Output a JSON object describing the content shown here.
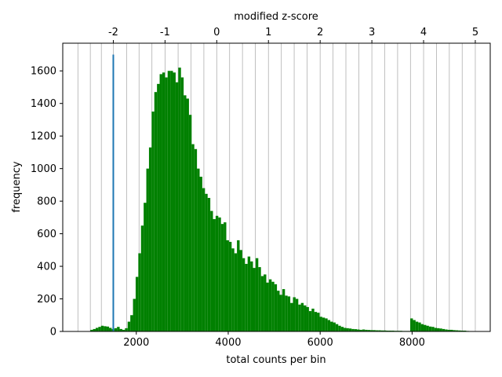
{
  "chart_data": {
    "type": "bar",
    "xlabel": "total counts per bin",
    "ylabel": "frequency",
    "top_xlabel": "modified z-score",
    "xlim": [
      400,
      9700
    ],
    "ylim": [
      0,
      1770
    ],
    "x_ticks": [
      2000,
      4000,
      6000,
      8000
    ],
    "x_tick_labels": [
      "2000",
      "4000",
      "6000",
      "8000"
    ],
    "y_ticks": [
      0,
      200,
      400,
      600,
      800,
      1000,
      1200,
      1400,
      1600
    ],
    "y_tick_labels": [
      "0",
      "200",
      "400",
      "600",
      "800",
      "1000",
      "1200",
      "1400",
      "1600"
    ],
    "top_ticks": [
      {
        "label": "-2",
        "x": 1500
      },
      {
        "label": "-1",
        "x": 2625
      },
      {
        "label": "0",
        "x": 3750
      },
      {
        "label": "1",
        "x": 4875
      },
      {
        "label": "2",
        "x": 6000
      },
      {
        "label": "3",
        "x": 7125
      },
      {
        "label": "4",
        "x": 8250
      },
      {
        "label": "5",
        "x": 9375
      }
    ],
    "grid_x": [
      730,
      1000,
      1240,
      1500,
      1790,
      2060,
      2340,
      2625,
      2910,
      3190,
      3470,
      3750,
      4030,
      4310,
      4590,
      4875,
      5155,
      5435,
      5715,
      6000,
      6280,
      6560,
      6840,
      7125,
      7405,
      7685,
      7965,
      8250,
      8530,
      8810,
      9090,
      9375
    ],
    "bar_color": "#008000",
    "marker": {
      "x": 1500,
      "y": 1700,
      "color": "#1f77b4"
    },
    "bin_width": 58,
    "bins": [
      {
        "x": 1000,
        "y": 10
      },
      {
        "x": 1058,
        "y": 15
      },
      {
        "x": 1116,
        "y": 22
      },
      {
        "x": 1174,
        "y": 28
      },
      {
        "x": 1232,
        "y": 35
      },
      {
        "x": 1290,
        "y": 32
      },
      {
        "x": 1348,
        "y": 30
      },
      {
        "x": 1406,
        "y": 22
      },
      {
        "x": 1464,
        "y": 15
      },
      {
        "x": 1522,
        "y": 20
      },
      {
        "x": 1580,
        "y": 28
      },
      {
        "x": 1638,
        "y": 15
      },
      {
        "x": 1696,
        "y": 10
      },
      {
        "x": 1754,
        "y": 20
      },
      {
        "x": 1812,
        "y": 60
      },
      {
        "x": 1870,
        "y": 100
      },
      {
        "x": 1928,
        "y": 200
      },
      {
        "x": 1986,
        "y": 335
      },
      {
        "x": 2044,
        "y": 480
      },
      {
        "x": 2102,
        "y": 650
      },
      {
        "x": 2160,
        "y": 790
      },
      {
        "x": 2218,
        "y": 1000
      },
      {
        "x": 2276,
        "y": 1130
      },
      {
        "x": 2334,
        "y": 1350
      },
      {
        "x": 2392,
        "y": 1470
      },
      {
        "x": 2450,
        "y": 1520
      },
      {
        "x": 2508,
        "y": 1580
      },
      {
        "x": 2566,
        "y": 1590
      },
      {
        "x": 2624,
        "y": 1560
      },
      {
        "x": 2682,
        "y": 1600
      },
      {
        "x": 2740,
        "y": 1600
      },
      {
        "x": 2798,
        "y": 1590
      },
      {
        "x": 2856,
        "y": 1530
      },
      {
        "x": 2914,
        "y": 1620
      },
      {
        "x": 2972,
        "y": 1560
      },
      {
        "x": 3030,
        "y": 1450
      },
      {
        "x": 3088,
        "y": 1430
      },
      {
        "x": 3146,
        "y": 1330
      },
      {
        "x": 3204,
        "y": 1150
      },
      {
        "x": 3262,
        "y": 1120
      },
      {
        "x": 3320,
        "y": 1000
      },
      {
        "x": 3378,
        "y": 950
      },
      {
        "x": 3436,
        "y": 880
      },
      {
        "x": 3494,
        "y": 845
      },
      {
        "x": 3552,
        "y": 820
      },
      {
        "x": 3610,
        "y": 740
      },
      {
        "x": 3668,
        "y": 690
      },
      {
        "x": 3726,
        "y": 710
      },
      {
        "x": 3784,
        "y": 700
      },
      {
        "x": 3842,
        "y": 660
      },
      {
        "x": 3900,
        "y": 670
      },
      {
        "x": 3958,
        "y": 560
      },
      {
        "x": 4016,
        "y": 550
      },
      {
        "x": 4074,
        "y": 510
      },
      {
        "x": 4132,
        "y": 480
      },
      {
        "x": 4190,
        "y": 560
      },
      {
        "x": 4248,
        "y": 500
      },
      {
        "x": 4306,
        "y": 450
      },
      {
        "x": 4364,
        "y": 415
      },
      {
        "x": 4422,
        "y": 460
      },
      {
        "x": 4480,
        "y": 430
      },
      {
        "x": 4538,
        "y": 390
      },
      {
        "x": 4596,
        "y": 450
      },
      {
        "x": 4654,
        "y": 395
      },
      {
        "x": 4712,
        "y": 340
      },
      {
        "x": 4770,
        "y": 350
      },
      {
        "x": 4828,
        "y": 300
      },
      {
        "x": 4886,
        "y": 320
      },
      {
        "x": 4944,
        "y": 305
      },
      {
        "x": 5002,
        "y": 290
      },
      {
        "x": 5060,
        "y": 250
      },
      {
        "x": 5118,
        "y": 225
      },
      {
        "x": 5176,
        "y": 260
      },
      {
        "x": 5234,
        "y": 220
      },
      {
        "x": 5292,
        "y": 215
      },
      {
        "x": 5350,
        "y": 175
      },
      {
        "x": 5408,
        "y": 210
      },
      {
        "x": 5466,
        "y": 200
      },
      {
        "x": 5524,
        "y": 165
      },
      {
        "x": 5582,
        "y": 175
      },
      {
        "x": 5640,
        "y": 160
      },
      {
        "x": 5698,
        "y": 150
      },
      {
        "x": 5756,
        "y": 125
      },
      {
        "x": 5814,
        "y": 140
      },
      {
        "x": 5872,
        "y": 120
      },
      {
        "x": 5930,
        "y": 115
      },
      {
        "x": 5988,
        "y": 90
      },
      {
        "x": 6046,
        "y": 85
      },
      {
        "x": 6104,
        "y": 80
      },
      {
        "x": 6162,
        "y": 70
      },
      {
        "x": 6220,
        "y": 60
      },
      {
        "x": 6278,
        "y": 55
      },
      {
        "x": 6336,
        "y": 45
      },
      {
        "x": 6394,
        "y": 35
      },
      {
        "x": 6452,
        "y": 28
      },
      {
        "x": 6510,
        "y": 22
      },
      {
        "x": 6568,
        "y": 20
      },
      {
        "x": 6626,
        "y": 18
      },
      {
        "x": 6684,
        "y": 15
      },
      {
        "x": 6742,
        "y": 14
      },
      {
        "x": 6800,
        "y": 12
      },
      {
        "x": 6858,
        "y": 10
      },
      {
        "x": 6916,
        "y": 12
      },
      {
        "x": 6974,
        "y": 10
      },
      {
        "x": 7032,
        "y": 9
      },
      {
        "x": 7090,
        "y": 8
      },
      {
        "x": 7148,
        "y": 8
      },
      {
        "x": 7206,
        "y": 7
      },
      {
        "x": 7264,
        "y": 7
      },
      {
        "x": 7322,
        "y": 6
      },
      {
        "x": 7380,
        "y": 6
      },
      {
        "x": 7438,
        "y": 5
      },
      {
        "x": 7496,
        "y": 5
      },
      {
        "x": 7554,
        "y": 5
      },
      {
        "x": 7612,
        "y": 4
      },
      {
        "x": 7670,
        "y": 4
      },
      {
        "x": 7728,
        "y": 4
      },
      {
        "x": 7786,
        "y": 3
      },
      {
        "x": 7844,
        "y": 3
      },
      {
        "x": 7902,
        "y": 3
      },
      {
        "x": 7960,
        "y": 80
      },
      {
        "x": 8018,
        "y": 70
      },
      {
        "x": 8076,
        "y": 60
      },
      {
        "x": 8134,
        "y": 55
      },
      {
        "x": 8192,
        "y": 45
      },
      {
        "x": 8250,
        "y": 40
      },
      {
        "x": 8308,
        "y": 35
      },
      {
        "x": 8366,
        "y": 30
      },
      {
        "x": 8424,
        "y": 28
      },
      {
        "x": 8482,
        "y": 22
      },
      {
        "x": 8540,
        "y": 20
      },
      {
        "x": 8598,
        "y": 18
      },
      {
        "x": 8656,
        "y": 15
      },
      {
        "x": 8714,
        "y": 12
      },
      {
        "x": 8772,
        "y": 10
      },
      {
        "x": 8830,
        "y": 10
      },
      {
        "x": 8888,
        "y": 8
      },
      {
        "x": 8946,
        "y": 7
      },
      {
        "x": 9004,
        "y": 6
      },
      {
        "x": 9062,
        "y": 5
      },
      {
        "x": 9120,
        "y": 5
      },
      {
        "x": 9178,
        "y": 3
      }
    ]
  }
}
